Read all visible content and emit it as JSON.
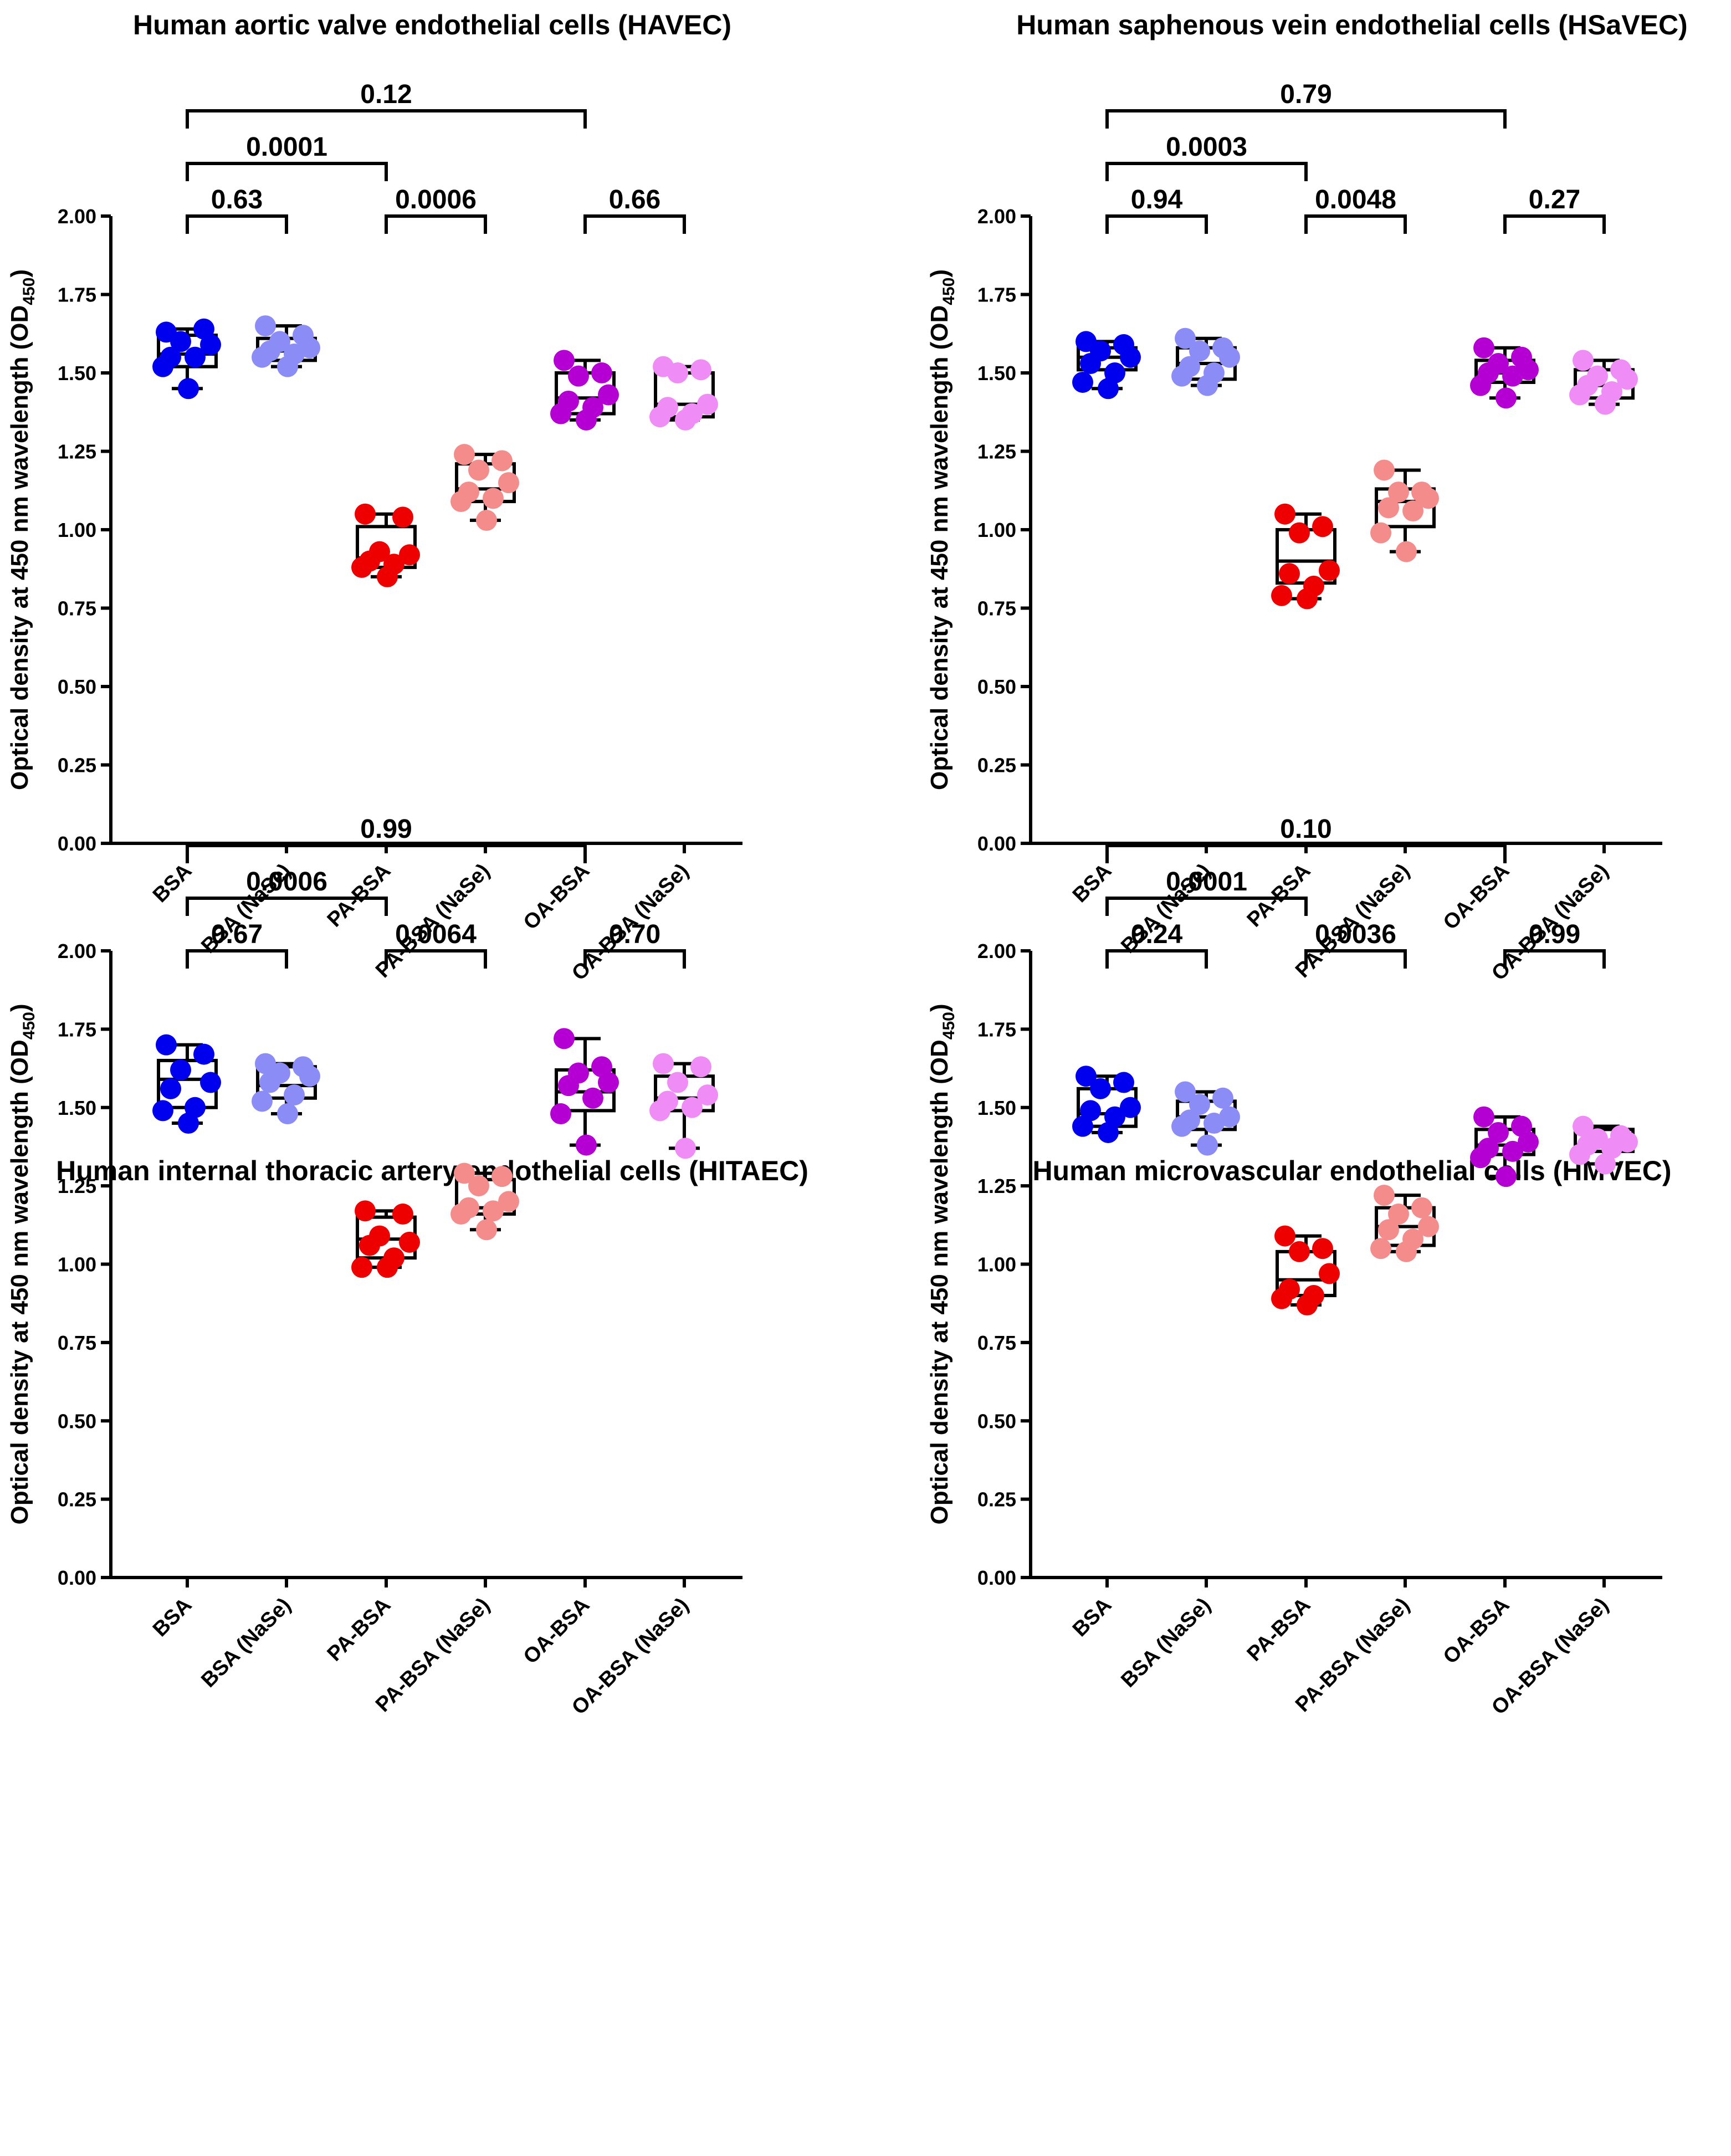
{
  "ylabel_main": "Optical density at 450 nm wavelength (OD",
  "ylabel_sub": "450",
  "ylabel_close": ")",
  "colors": [
    "#0000ee",
    "#8c8cf7",
    "#ee0000",
    "#f58c8c",
    "#b400d2",
    "#f08cf5"
  ],
  "chart_data": [
    {
      "type": "box",
      "title": "Human aortic valve endothelial cells (HAVEC)",
      "ylim": [
        0,
        2.0
      ],
      "yticks": [
        "0.00",
        "0.25",
        "0.50",
        "0.75",
        "1.00",
        "1.25",
        "1.50",
        "1.75",
        "2.00"
      ],
      "categories": [
        "BSA",
        "BSA (NaSe)",
        "PA-BSA",
        "PA-BSA (NaSe)",
        "OA-BSA",
        "OA-BSA (NaSe)"
      ],
      "boxes": [
        {
          "min": 1.45,
          "q1": 1.52,
          "median": 1.56,
          "q3": 1.62,
          "max": 1.64
        },
        {
          "min": 1.52,
          "q1": 1.54,
          "median": 1.57,
          "q3": 1.61,
          "max": 1.65
        },
        {
          "min": 0.85,
          "q1": 0.88,
          "median": 0.91,
          "q3": 1.01,
          "max": 1.05
        },
        {
          "min": 1.03,
          "q1": 1.09,
          "median": 1.13,
          "q3": 1.21,
          "max": 1.24
        },
        {
          "min": 1.35,
          "q1": 1.37,
          "median": 1.42,
          "q3": 1.5,
          "max": 1.54
        },
        {
          "min": 1.35,
          "q1": 1.36,
          "median": 1.4,
          "q3": 1.5,
          "max": 1.52
        }
      ],
      "points": [
        [
          1.63,
          1.64,
          1.6,
          1.59,
          1.55,
          1.55,
          1.52,
          1.45
        ],
        [
          1.65,
          1.62,
          1.6,
          1.58,
          1.57,
          1.56,
          1.55,
          1.52
        ],
        [
          1.05,
          1.04,
          0.93,
          0.92,
          0.9,
          0.89,
          0.88,
          0.85
        ],
        [
          1.24,
          1.22,
          1.19,
          1.15,
          1.12,
          1.1,
          1.09,
          1.03
        ],
        [
          1.54,
          1.5,
          1.49,
          1.43,
          1.41,
          1.39,
          1.37,
          1.35
        ],
        [
          1.52,
          1.51,
          1.5,
          1.4,
          1.39,
          1.37,
          1.36,
          1.35
        ]
      ],
      "comparisons": [
        {
          "from": 0,
          "to": 4,
          "level": 0,
          "label": "0.12"
        },
        {
          "from": 0,
          "to": 2,
          "level": 1,
          "label": "0.0001"
        },
        {
          "from": 0,
          "to": 1,
          "level": 2,
          "label": "0.63"
        },
        {
          "from": 2,
          "to": 3,
          "level": 2,
          "label": "0.0006"
        },
        {
          "from": 4,
          "to": 5,
          "level": 2,
          "label": "0.66"
        }
      ]
    },
    {
      "type": "box",
      "title": "Human saphenous vein endothelial cells (HSaVEC)",
      "ylim": [
        0,
        2.0
      ],
      "yticks": [
        "0.00",
        "0.25",
        "0.50",
        "0.75",
        "1.00",
        "1.25",
        "1.50",
        "1.75",
        "2.00"
      ],
      "categories": [
        "BSA",
        "BSA (NaSe)",
        "PA-BSA",
        "PA-BSA (NaSe)",
        "OA-BSA",
        "OA-BSA (NaSe)"
      ],
      "boxes": [
        {
          "min": 1.45,
          "q1": 1.51,
          "median": 1.55,
          "q3": 1.58,
          "max": 1.6
        },
        {
          "min": 1.46,
          "q1": 1.48,
          "median": 1.53,
          "q3": 1.58,
          "max": 1.61
        },
        {
          "min": 0.78,
          "q1": 0.83,
          "median": 0.9,
          "q3": 1.0,
          "max": 1.05
        },
        {
          "min": 0.93,
          "q1": 1.01,
          "median": 1.09,
          "q3": 1.13,
          "max": 1.19
        },
        {
          "min": 1.42,
          "q1": 1.47,
          "median": 1.5,
          "q3": 1.54,
          "max": 1.58
        },
        {
          "min": 1.4,
          "q1": 1.42,
          "median": 1.46,
          "q3": 1.51,
          "max": 1.54
        }
      ],
      "points": [
        [
          1.6,
          1.59,
          1.57,
          1.55,
          1.53,
          1.5,
          1.47,
          1.45
        ],
        [
          1.61,
          1.58,
          1.57,
          1.55,
          1.52,
          1.5,
          1.49,
          1.46
        ],
        [
          1.05,
          1.01,
          0.99,
          0.87,
          0.86,
          0.82,
          0.79,
          0.78
        ],
        [
          1.19,
          1.12,
          1.12,
          1.1,
          1.07,
          1.06,
          0.99,
          0.93
        ],
        [
          1.58,
          1.55,
          1.53,
          1.51,
          1.5,
          1.49,
          1.46,
          1.42
        ],
        [
          1.54,
          1.51,
          1.49,
          1.48,
          1.46,
          1.44,
          1.43,
          1.4
        ]
      ],
      "comparisons": [
        {
          "from": 0,
          "to": 4,
          "level": 0,
          "label": "0.79"
        },
        {
          "from": 0,
          "to": 2,
          "level": 1,
          "label": "0.0003"
        },
        {
          "from": 0,
          "to": 1,
          "level": 2,
          "label": "0.94"
        },
        {
          "from": 2,
          "to": 3,
          "level": 2,
          "label": "0.0048"
        },
        {
          "from": 4,
          "to": 5,
          "level": 2,
          "label": "0.27"
        }
      ]
    },
    {
      "type": "box",
      "title": "Human internal thoracic artery endothelial cells (HITAEC)",
      "ylim": [
        0,
        2.0
      ],
      "yticks": [
        "0.00",
        "0.25",
        "0.50",
        "0.75",
        "1.00",
        "1.25",
        "1.50",
        "1.75",
        "2.00"
      ],
      "categories": [
        "BSA",
        "BSA (NaSe)",
        "PA-BSA",
        "PA-BSA (NaSe)",
        "OA-BSA",
        "OA-BSA (NaSe)"
      ],
      "boxes": [
        {
          "min": 1.45,
          "q1": 1.5,
          "median": 1.59,
          "q3": 1.65,
          "max": 1.7
        },
        {
          "min": 1.48,
          "q1": 1.53,
          "median": 1.57,
          "q3": 1.63,
          "max": 1.64
        },
        {
          "min": 0.99,
          "q1": 1.02,
          "median": 1.08,
          "q3": 1.15,
          "max": 1.17
        },
        {
          "min": 1.11,
          "q1": 1.16,
          "median": 1.18,
          "q3": 1.27,
          "max": 1.29
        },
        {
          "min": 1.38,
          "q1": 1.49,
          "median": 1.55,
          "q3": 1.62,
          "max": 1.72
        },
        {
          "min": 1.37,
          "q1": 1.49,
          "median": 1.53,
          "q3": 1.6,
          "max": 1.64
        }
      ],
      "points": [
        [
          1.7,
          1.67,
          1.62,
          1.58,
          1.56,
          1.5,
          1.49,
          1.45
        ],
        [
          1.64,
          1.63,
          1.61,
          1.6,
          1.58,
          1.54,
          1.52,
          1.48
        ],
        [
          1.17,
          1.16,
          1.09,
          1.07,
          1.06,
          1.02,
          0.99,
          0.99
        ],
        [
          1.29,
          1.28,
          1.25,
          1.2,
          1.18,
          1.17,
          1.16,
          1.11
        ],
        [
          1.72,
          1.63,
          1.61,
          1.58,
          1.57,
          1.53,
          1.48,
          1.38
        ],
        [
          1.64,
          1.63,
          1.58,
          1.54,
          1.52,
          1.5,
          1.49,
          1.37
        ]
      ],
      "comparisons": [
        {
          "from": 0,
          "to": 4,
          "level": 0,
          "label": "0.99"
        },
        {
          "from": 0,
          "to": 2,
          "level": 1,
          "label": "0.0006"
        },
        {
          "from": 0,
          "to": 1,
          "level": 2,
          "label": "0.67"
        },
        {
          "from": 2,
          "to": 3,
          "level": 2,
          "label": "0.0064"
        },
        {
          "from": 4,
          "to": 5,
          "level": 2,
          "label": "0.70"
        }
      ]
    },
    {
      "type": "box",
      "title": "Human microvascular endothelial cells (HMVEC)",
      "ylim": [
        0,
        2.0
      ],
      "yticks": [
        "0.00",
        "0.25",
        "0.50",
        "0.75",
        "1.00",
        "1.25",
        "1.50",
        "1.75",
        "2.00"
      ],
      "categories": [
        "BSA",
        "BSA (NaSe)",
        "PA-BSA",
        "PA-BSA (NaSe)",
        "OA-BSA",
        "OA-BSA (NaSe)"
      ],
      "boxes": [
        {
          "min": 1.42,
          "q1": 1.44,
          "median": 1.48,
          "q3": 1.56,
          "max": 1.6
        },
        {
          "min": 1.38,
          "q1": 1.43,
          "median": 1.47,
          "q3": 1.52,
          "max": 1.55
        },
        {
          "min": 0.87,
          "q1": 0.9,
          "median": 0.95,
          "q3": 1.04,
          "max": 1.09
        },
        {
          "min": 1.04,
          "q1": 1.06,
          "median": 1.12,
          "q3": 1.18,
          "max": 1.22
        },
        {
          "min": 1.28,
          "q1": 1.35,
          "median": 1.38,
          "q3": 1.43,
          "max": 1.47
        },
        {
          "min": 1.32,
          "q1": 1.36,
          "median": 1.38,
          "q3": 1.43,
          "max": 1.44
        }
      ],
      "points": [
        [
          1.6,
          1.58,
          1.56,
          1.5,
          1.49,
          1.47,
          1.44,
          1.42
        ],
        [
          1.55,
          1.53,
          1.51,
          1.47,
          1.46,
          1.45,
          1.44,
          1.38
        ],
        [
          1.09,
          1.05,
          1.04,
          0.97,
          0.92,
          0.9,
          0.89,
          0.87
        ],
        [
          1.22,
          1.18,
          1.16,
          1.12,
          1.11,
          1.08,
          1.05,
          1.04
        ],
        [
          1.47,
          1.44,
          1.42,
          1.39,
          1.37,
          1.36,
          1.34,
          1.28
        ],
        [
          1.44,
          1.41,
          1.4,
          1.39,
          1.38,
          1.37,
          1.35,
          1.32
        ]
      ],
      "comparisons": [
        {
          "from": 0,
          "to": 4,
          "level": 0,
          "label": "0.10"
        },
        {
          "from": 0,
          "to": 2,
          "level": 1,
          "label": "0.0001"
        },
        {
          "from": 0,
          "to": 1,
          "level": 2,
          "label": "0.24"
        },
        {
          "from": 2,
          "to": 3,
          "level": 2,
          "label": "0.0036"
        },
        {
          "from": 4,
          "to": 5,
          "level": 2,
          "label": "0.99"
        }
      ]
    }
  ]
}
